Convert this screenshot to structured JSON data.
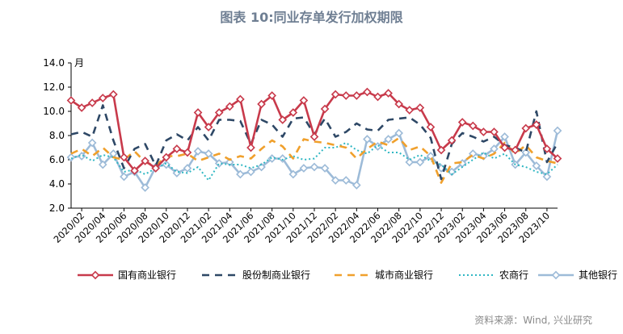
{
  "title": "图表 10:同业存单发行加权期限",
  "source": "资料来源：Wind, 兴业研究",
  "chart_data": {
    "type": "line",
    "title": "图表 10:同业存单发行加权期限",
    "ylabel": "月",
    "ylim": [
      2.0,
      14.0
    ],
    "yticks": [
      "2.0",
      "4.0",
      "6.0",
      "8.0",
      "10.0",
      "12.0",
      "14.0"
    ],
    "grid": false,
    "legend_position": "bottom",
    "x": [
      "2020/01",
      "2020/02",
      "2020/03",
      "2020/04",
      "2020/05",
      "2020/06",
      "2020/07",
      "2020/08",
      "2020/09",
      "2020/10",
      "2020/11",
      "2020/12",
      "2021/01",
      "2021/02",
      "2021/03",
      "2021/04",
      "2021/05",
      "2021/06",
      "2021/07",
      "2021/08",
      "2021/09",
      "2021/10",
      "2021/11",
      "2021/12",
      "2022/01",
      "2022/02",
      "2022/03",
      "2022/04",
      "2022/05",
      "2022/06",
      "2022/07",
      "2022/08",
      "2022/09",
      "2022/10",
      "2022/11",
      "2022/12",
      "2023/01",
      "2023/02",
      "2023/03",
      "2023/04",
      "2023/05",
      "2023/06",
      "2023/07",
      "2023/08",
      "2023/09",
      "2023/10",
      "2023/11"
    ],
    "xticks": [
      "2020/02",
      "2020/04",
      "2020/06",
      "2020/08",
      "2020/10",
      "2020/12",
      "2021/02",
      "2021/04",
      "2021/06",
      "2021/08",
      "2021/10",
      "2021/12",
      "2022/02",
      "2022/04",
      "2022/06",
      "2022/08",
      "2022/10",
      "2022/12",
      "2023/02",
      "2023/04",
      "2023/06",
      "2023/08",
      "2023/10"
    ],
    "series": [
      {
        "name": "国有商业银行",
        "color": "#c83a4b",
        "style": "solid",
        "marker": "diamond",
        "values": [
          10.9,
          10.3,
          10.7,
          11.1,
          11.4,
          6.2,
          5.1,
          5.9,
          5.3,
          6.2,
          6.9,
          6.6,
          9.9,
          8.7,
          9.9,
          10.4,
          11.0,
          7.0,
          10.6,
          11.3,
          9.3,
          9.9,
          10.9,
          7.9,
          10.2,
          11.4,
          11.3,
          11.3,
          11.6,
          11.2,
          11.5,
          10.6,
          10.1,
          10.3,
          8.7,
          6.8,
          7.6,
          9.1,
          8.8,
          8.3,
          8.3,
          7.0,
          6.8,
          8.6,
          8.9,
          6.9,
          6.1
        ]
      },
      {
        "name": "股份制商业银行",
        "color": "#2e4866",
        "style": "dashed",
        "marker": "none",
        "values": [
          8.1,
          8.3,
          7.9,
          10.5,
          7.6,
          5.3,
          6.9,
          7.3,
          5.5,
          7.6,
          8.1,
          7.6,
          8.7,
          7.6,
          9.3,
          9.3,
          9.2,
          7.3,
          9.3,
          8.9,
          7.9,
          9.4,
          9.5,
          8.1,
          9.4,
          7.9,
          8.3,
          9.0,
          8.5,
          8.4,
          9.3,
          9.4,
          9.5,
          8.9,
          7.8,
          4.4,
          7.3,
          8.2,
          7.9,
          7.5,
          7.9,
          7.2,
          7.0,
          6.6,
          10.0,
          5.8,
          7.4
        ]
      },
      {
        "name": "城市商业银行",
        "color": "#f0a02c",
        "style": "dashed",
        "marker": "none",
        "values": [
          6.5,
          6.9,
          6.3,
          7.0,
          6.2,
          6.0,
          6.7,
          5.8,
          5.5,
          6.3,
          6.3,
          6.5,
          5.9,
          6.2,
          6.5,
          6.0,
          6.3,
          6.1,
          6.9,
          7.6,
          7.1,
          6.1,
          7.7,
          7.5,
          7.4,
          7.2,
          7.0,
          6.1,
          6.9,
          7.5,
          7.2,
          7.8,
          6.8,
          7.1,
          6.3,
          4.1,
          5.7,
          5.8,
          6.4,
          6.1,
          6.5,
          7.4,
          6.5,
          7.2,
          6.2,
          5.9,
          5.7
        ]
      },
      {
        "name": "农商行",
        "color": "#2fb7c3",
        "style": "dotted",
        "marker": "none",
        "values": [
          6.1,
          6.4,
          5.9,
          6.4,
          6.2,
          5.0,
          5.2,
          4.8,
          5.3,
          5.7,
          5.0,
          4.9,
          5.4,
          4.3,
          5.7,
          5.6,
          5.6,
          5.3,
          5.6,
          6.2,
          6.0,
          6.3,
          6.0,
          6.1,
          7.0,
          7.0,
          7.4,
          6.8,
          6.5,
          7.2,
          6.6,
          6.6,
          6.0,
          6.4,
          5.9,
          5.6,
          4.8,
          5.4,
          6.0,
          6.6,
          6.1,
          6.5,
          5.6,
          5.4,
          5.0,
          4.8,
          5.6
        ]
      },
      {
        "name": "其他银行",
        "color": "#9dbbd8",
        "style": "solid",
        "marker": "diamond",
        "values": [
          6.2,
          6.3,
          7.4,
          5.6,
          6.5,
          4.6,
          5.0,
          3.7,
          5.4,
          5.6,
          4.9,
          5.3,
          6.7,
          6.5,
          5.7,
          5.8,
          4.8,
          5.0,
          5.4,
          6.1,
          6.1,
          4.8,
          5.3,
          5.4,
          5.3,
          4.3,
          4.3,
          3.9,
          7.7,
          7.1,
          7.7,
          8.2,
          5.8,
          5.8,
          6.3,
          5.3,
          5.0,
          5.7,
          6.5,
          6.3,
          6.9,
          7.9,
          5.6,
          6.6,
          5.5,
          4.6,
          8.4
        ]
      }
    ]
  }
}
